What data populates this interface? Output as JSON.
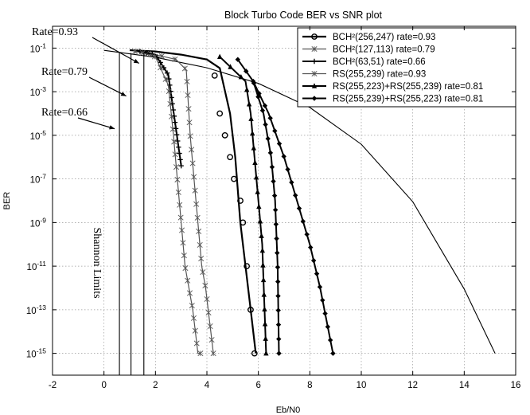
{
  "chart_data": {
    "type": "line",
    "title": "Block Turbo Code BER vs SNR plot",
    "xlabel": "Eb/N0",
    "ylabel": "BER",
    "xscale": "linear",
    "yscale": "log",
    "xlim": [
      -2,
      16
    ],
    "ylim": [
      1e-16,
      1
    ],
    "x_ticks": [
      -2,
      0,
      2,
      4,
      6,
      8,
      10,
      12,
      14,
      16
    ],
    "y_ticks": [
      {
        "exp": -1,
        "base": "10",
        "sup": "-1"
      },
      {
        "exp": -3,
        "base": "10",
        "sup": "-3"
      },
      {
        "exp": -5,
        "base": "10",
        "sup": "-5"
      },
      {
        "exp": -7,
        "base": "10",
        "sup": "-7"
      },
      {
        "exp": -9,
        "base": "10",
        "sup": "-9"
      },
      {
        "exp": -11,
        "base": "10",
        "sup": "-11"
      },
      {
        "exp": -13,
        "base": "10",
        "sup": "-13"
      },
      {
        "exp": -15,
        "base": "10",
        "sup": "-15"
      }
    ],
    "grid": true,
    "legend_position": "top-right",
    "uncoded": {
      "x": [
        0,
        2,
        4,
        6,
        8,
        10,
        12,
        14,
        15.2
      ],
      "y": [
        0.079,
        0.038,
        0.0125,
        0.0024,
        0.00019,
        3.9e-06,
        9e-09,
        9e-13,
        1e-15
      ]
    },
    "shannon_limits": [
      {
        "label": "Rate=0.93",
        "x": 1.55
      },
      {
        "label": "Rate=0.79",
        "x": 1.05
      },
      {
        "label": "Rate=0.66",
        "x": 0.6
      }
    ],
    "shannon_text": "Shannon Limits",
    "series": [
      {
        "name": "BCH²(256,247) rate=0.93",
        "marker": "circle",
        "color": "#000000",
        "width": 2.2,
        "x": [
          1.0,
          2.0,
          3.0,
          4.0,
          4.5,
          4.9,
          5.1,
          5.3,
          5.5,
          5.7,
          5.9
        ],
        "y": [
          0.08,
          0.07,
          0.05,
          0.03,
          0.012,
          0.0001,
          1e-06,
          1e-09,
          1e-11,
          1e-13,
          1e-15
        ],
        "markers": [
          [
            4.3,
            0.0055
          ],
          [
            4.5,
            0.0001
          ],
          [
            4.7,
            1e-05
          ],
          [
            4.9,
            1e-06
          ],
          [
            5.05,
            1e-07
          ],
          [
            5.3,
            1e-08
          ],
          [
            5.4,
            1e-09
          ],
          [
            5.55,
            1e-11
          ],
          [
            5.7,
            1e-13
          ],
          [
            5.85,
            1e-15
          ]
        ]
      },
      {
        "name": "BCH²(127,113) rate=0.79",
        "marker": "star",
        "color": "#555555",
        "width": 1.2,
        "x": [
          1.2,
          2.0,
          2.8,
          3.2,
          3.35,
          3.5,
          3.65,
          3.8,
          3.95,
          4.05,
          4.15,
          4.25
        ],
        "y": [
          0.07,
          0.05,
          0.03,
          0.01,
          1e-05,
          1e-07,
          1e-09,
          1e-11,
          1e-12,
          1e-13,
          1e-14,
          1e-15
        ]
      },
      {
        "name": "BCH²(63,51) rate=0.66",
        "marker": "plus",
        "color": "#000000",
        "width": 2.0,
        "x": [
          1.4,
          2.0,
          2.5,
          3.0
        ],
        "y": [
          0.07,
          0.05,
          0.006,
          4e-07
        ]
      },
      {
        "name": "RS(255,239) rate=0.93",
        "marker": "star",
        "color": "#555555",
        "width": 1.2,
        "x": [
          1.5,
          2.0,
          2.5,
          2.7,
          2.85,
          3.0,
          3.15,
          3.3,
          3.45,
          3.55,
          3.65,
          3.75
        ],
        "y": [
          0.06,
          0.04,
          0.002,
          1e-05,
          1e-07,
          1e-09,
          1e-11,
          1e-12,
          1e-13,
          1e-14,
          1e-15,
          1e-15
        ]
      },
      {
        "name": "RS(255,223)+RS(255,239) rate=0.81",
        "marker": "triangle",
        "color": "#000000",
        "width": 2.0,
        "x": [
          4.5,
          5.5,
          5.7,
          5.85,
          6.0,
          6.15,
          6.3
        ],
        "y": [
          0.04,
          0.003,
          0.0001,
          1e-06,
          1e-08,
          1e-10,
          1e-15
        ]
      },
      {
        "name": "RS(255,239)+RS(255,223) rate=0.81",
        "marker": "diamond",
        "color": "#000000",
        "width": 2.0,
        "x": [
          5.2,
          5.8,
          6.2,
          6.5,
          6.65,
          6.75,
          6.8
        ],
        "y": [
          0.03,
          0.003,
          0.0001,
          1e-06,
          1e-08,
          1e-11,
          1e-15
        ]
      },
      {
        "name": "",
        "marker": "diamond",
        "color": "#000000",
        "width": 2.0,
        "x": [
          5.8,
          6.4,
          7.0,
          7.5,
          8.0,
          8.4,
          8.9
        ],
        "y": [
          0.003,
          0.0001,
          1e-06,
          1e-08,
          1e-10,
          1e-12,
          1e-15
        ]
      }
    ]
  }
}
